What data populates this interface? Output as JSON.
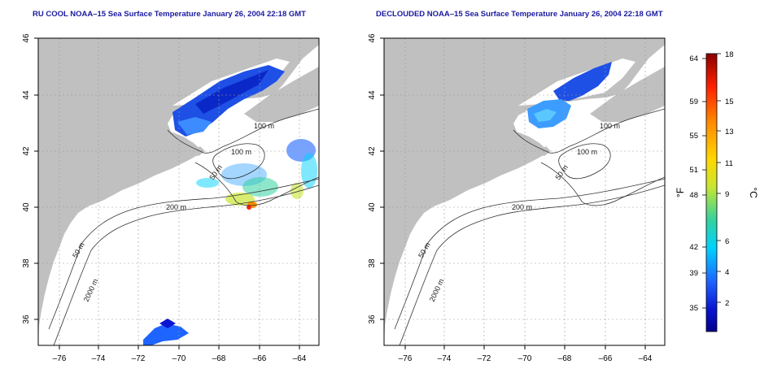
{
  "left_map": {
    "title": "RU COOL NOAA–15 Sea Surface Temperature January 26, 2004 22:18 GMT",
    "x_ticks": [
      "–76",
      "–74",
      "–72",
      "–70",
      "–68",
      "–66",
      "–64"
    ],
    "y_ticks": [
      "46",
      "44",
      "42",
      "40",
      "38",
      "36"
    ],
    "contour_labels": [
      "100 m",
      "100 m",
      "50 m",
      "200 m",
      "50 m",
      "2000 m"
    ]
  },
  "right_map": {
    "title": "DECLOUDED NOAA–15 Sea Surface Temperature January 26, 2004 22:18 GMT",
    "x_ticks": [
      "–76",
      "–74",
      "–72",
      "–70",
      "–68",
      "–66",
      "–64"
    ],
    "y_ticks": [
      "46",
      "44",
      "42",
      "40",
      "38",
      "36"
    ],
    "contour_labels": [
      "100 m",
      "100 m",
      "50 m",
      "200 m",
      "50 m",
      "2000 m"
    ]
  },
  "colorbar": {
    "fahrenheit_label": "°F",
    "celsius_label": "°C",
    "fahrenheit_ticks": [
      "64",
      "59",
      "55",
      "51",
      "48",
      "42",
      "39",
      "35"
    ],
    "celsius_ticks": [
      "18",
      "15",
      "13",
      "11",
      "9",
      "6",
      "4",
      "2"
    ],
    "colors": [
      "#8b0000",
      "#ff2000",
      "#ff8c00",
      "#ffd700",
      "#c8e632",
      "#32d2a0",
      "#00d2ff",
      "#1e64ff",
      "#0a14d2",
      "#00008b"
    ]
  },
  "colors": {
    "land": "#c0c0c0",
    "ocean": "#ffffff",
    "title_text": "#1a1aa0",
    "contour": "#333333",
    "grid": "#9a9a9a"
  }
}
